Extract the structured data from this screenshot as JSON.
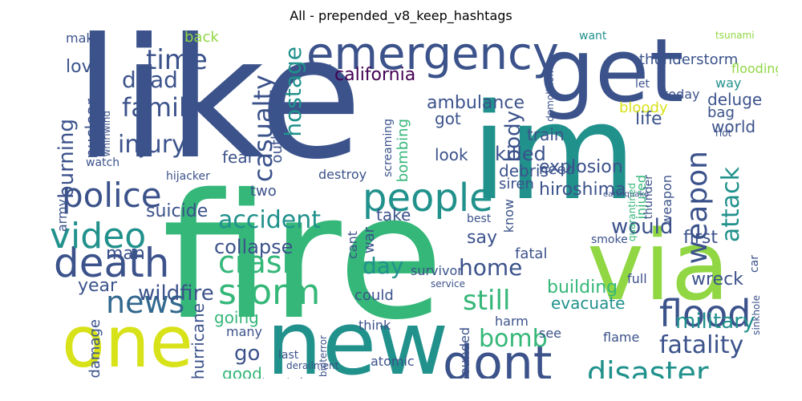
{
  "title": "All - prepended_v8_keep_hashtags",
  "colors": {
    "purple": "#440154",
    "indigo": "#3b528b",
    "blue": "#31688e",
    "teal": "#21918c",
    "green": "#35b779",
    "lime": "#90d743",
    "yellow": "#d8e219"
  },
  "words": [
    "like",
    "fire",
    "im",
    "get",
    "via",
    "new",
    "one",
    "emergency",
    "dont",
    "people",
    "death",
    "police",
    "video",
    "news",
    "storm",
    "flood",
    "disaster",
    "crash",
    "weapon",
    "attack",
    "burning",
    "injury",
    "family",
    "dead",
    "time",
    "casualty",
    "hostage",
    "california",
    "accident",
    "suicide",
    "wildfire",
    "collapse",
    "bomb",
    "still",
    "fatality",
    "wreck",
    "home",
    "day",
    "say",
    "would",
    "building",
    "evacuate",
    "military",
    "body",
    "killed",
    "army",
    "year",
    "man",
    "go",
    "damage",
    "hurricane",
    "good",
    "going",
    "many",
    "bombing",
    "nuclear",
    "outbreak",
    "first",
    "weapon",
    "injured",
    "explosion",
    "debris",
    "siren",
    "hiroshima",
    "life",
    "world",
    "bloody",
    "thunder",
    "ambulance",
    "train",
    "need",
    "got",
    "two",
    "fear",
    "look",
    "love",
    "back",
    "make",
    "thunderstorm",
    "want",
    "flooding",
    "way",
    "deluge",
    "today",
    "bag",
    "let",
    "fatal",
    "full",
    "smoke",
    "service",
    "survivor",
    "think",
    "harm",
    "could",
    "see",
    "wounded",
    "war",
    "cant",
    "know",
    "flame",
    "atomic",
    "last",
    "best",
    "watch",
    "hijacker",
    "whirlwind",
    "screaming",
    "destroy",
    "take",
    "car",
    "sinkhole",
    "demolition",
    "riot",
    "tsunami",
    "quarantined",
    "earthquake",
    "derailment",
    "electrocuted",
    "bioterror",
    "apocalypse"
  ]
}
